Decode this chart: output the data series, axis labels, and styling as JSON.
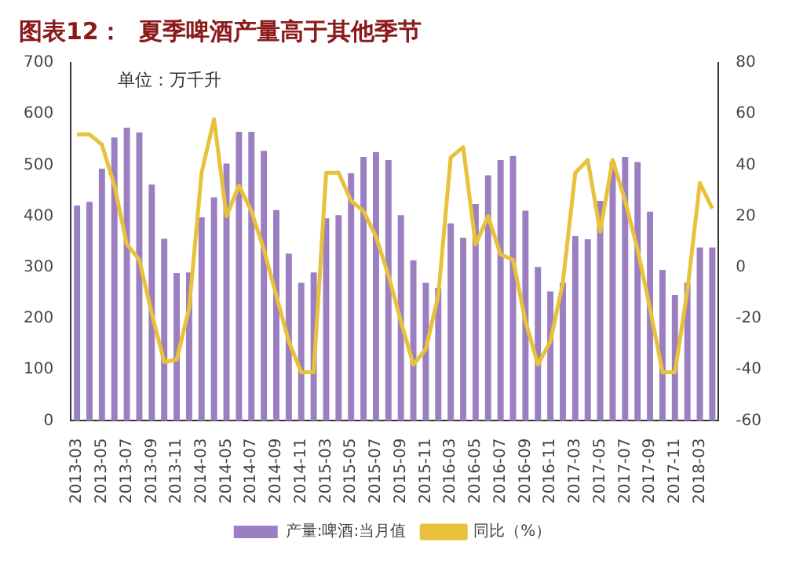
{
  "chart_data": {
    "type": "bar",
    "title": "图表12：  夏季啤酒产量高于其他季节",
    "annotations": [
      "单位：万千升"
    ],
    "categories": [
      "2013-03",
      null,
      "2013-05",
      null,
      "2013-07",
      null,
      "2013-09",
      null,
      "2013-11",
      null,
      "2014-03",
      null,
      "2014-05",
      null,
      "2014-07",
      null,
      "2014-09",
      null,
      "2014-11",
      null,
      "2015-03",
      null,
      "2015-05",
      null,
      "2015-07",
      null,
      "2015-09",
      null,
      "2015-11",
      null,
      "2016-03",
      null,
      "2016-05",
      null,
      "2016-07",
      null,
      "2016-09",
      null,
      "2016-11",
      null,
      "2017-03",
      null,
      "2017-05",
      null,
      "2017-07",
      null,
      "2017-09",
      null,
      "2017-11",
      null,
      "2018-03",
      null
    ],
    "series": [
      {
        "name": "产量:啤酒:当月值",
        "color": "#9b7fc0",
        "values": [
          421,
          428,
          493,
          554,
          573,
          564,
          462,
          356,
          289,
          290,
          398,
          437,
          503,
          565,
          565,
          528,
          412,
          327,
          270,
          290,
          396,
          402,
          484,
          516,
          525,
          510,
          402,
          314,
          270,
          260,
          386,
          358,
          424,
          480,
          510,
          518,
          411,
          301,
          253,
          270,
          361,
          355,
          430,
          506,
          516,
          506,
          409,
          295,
          246,
          270,
          339,
          339
        ]
      },
      {
        "name": "同比（%）",
        "type": "line",
        "axis": "y2",
        "color": "#e8c23a",
        "values": [
          52,
          52,
          48,
          32,
          9,
          3,
          -18,
          -37,
          -36,
          -16,
          37,
          58,
          20,
          32,
          22,
          7,
          -11,
          -29,
          -41,
          -41,
          37,
          37,
          26,
          22,
          12,
          -3,
          -21,
          -38,
          -32,
          -11,
          43,
          47,
          9,
          20,
          5,
          3,
          -21,
          -38,
          -29,
          -6,
          37,
          42,
          14,
          42,
          26,
          7,
          -16,
          -41,
          -41,
          -9,
          33,
          23
        ]
      }
    ],
    "ylim": [
      0,
      700
    ],
    "yticks": [
      0,
      100,
      200,
      300,
      400,
      500,
      600,
      700
    ],
    "y2lim": [
      -60,
      80
    ],
    "y2ticks": [
      -60,
      -40,
      -20,
      0,
      20,
      40,
      60,
      80
    ],
    "grid": false,
    "legend": "bottom"
  }
}
